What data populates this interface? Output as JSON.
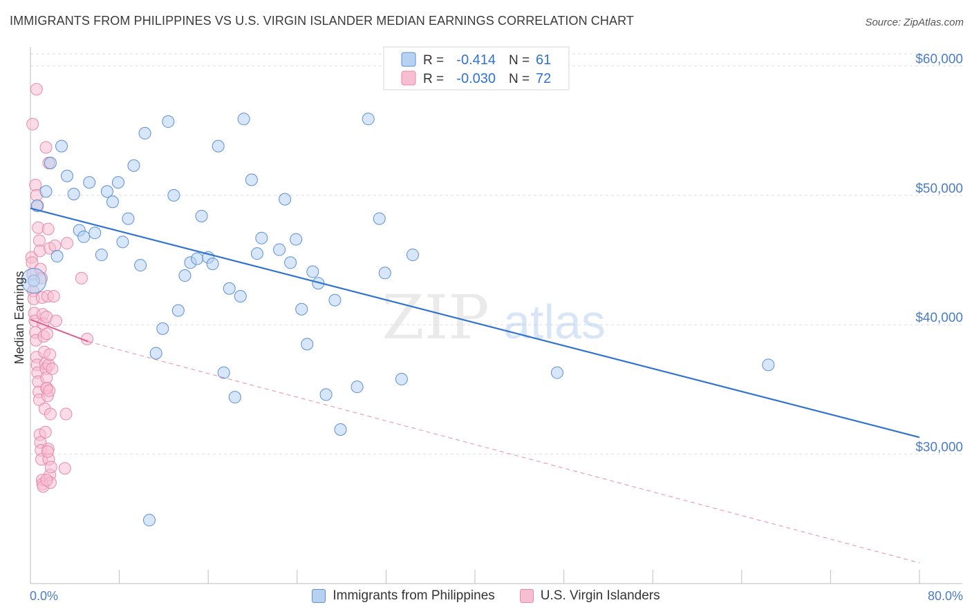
{
  "header": {
    "title": "IMMIGRANTS FROM PHILIPPINES VS U.S. VIRGIN ISLANDER MEDIAN EARNINGS CORRELATION CHART",
    "source": "Source: ZipAtlas.com"
  },
  "watermark": {
    "zip": "ZIP",
    "atlas": "atlas"
  },
  "legend_stats": [
    {
      "r_label": "R =",
      "r_value": "-0.414",
      "n_label": "N =",
      "n_value": "61"
    },
    {
      "r_label": "R =",
      "r_value": "-0.030",
      "n_label": "N =",
      "n_value": "72"
    }
  ],
  "legend_bottom": [
    {
      "label": "Immigrants from Philippines"
    },
    {
      "label": "U.S. Virgin Islanders"
    }
  ],
  "colors": {
    "blue_fill": "#b7d1f2",
    "blue_stroke": "#5b8fd6",
    "blue_line": "#2f72d0",
    "pink_fill": "#f7bdd0",
    "pink_stroke": "#e68aab",
    "pink_line": "#e05a8a",
    "tick_label": "#4a7cc7",
    "grid": "#dddddd"
  },
  "chart_data": {
    "type": "scatter",
    "title": "IMMIGRANTS FROM PHILIPPINES VS U.S. VIRGIN ISLANDER MEDIAN EARNINGS CORRELATION CHART",
    "xlabel": "",
    "ylabel": "Median Earnings",
    "xlim": [
      0,
      80
    ],
    "ylim": [
      20000,
      62000
    ],
    "x_tick_labels": {
      "min": "0.0%",
      "max": "80.0%"
    },
    "y_ticks": [
      {
        "value": 30000,
        "label": "$30,000"
      },
      {
        "value": 40000,
        "label": "$40,000"
      },
      {
        "value": 50000,
        "label": "$50,000"
      },
      {
        "value": 60000,
        "label": "$60,000"
      }
    ],
    "grid": true,
    "legend_position": "top-center",
    "series": [
      {
        "name": "Immigrants from Philippines",
        "color": "blue",
        "points": [
          [
            0.3,
            43400
          ],
          [
            0.6,
            49200
          ],
          [
            1.4,
            50300
          ],
          [
            1.8,
            52500
          ],
          [
            2.4,
            45300
          ],
          [
            2.8,
            53800
          ],
          [
            3.3,
            51500
          ],
          [
            3.9,
            50100
          ],
          [
            4.4,
            47300
          ],
          [
            4.8,
            46800
          ],
          [
            5.3,
            51000
          ],
          [
            5.8,
            47100
          ],
          [
            6.4,
            45400
          ],
          [
            6.9,
            50300
          ],
          [
            7.4,
            49500
          ],
          [
            7.9,
            51000
          ],
          [
            8.3,
            46400
          ],
          [
            8.8,
            48200
          ],
          [
            9.3,
            52300
          ],
          [
            9.9,
            44600
          ],
          [
            10.3,
            54800
          ],
          [
            10.7,
            24900
          ],
          [
            11.3,
            37800
          ],
          [
            11.9,
            39700
          ],
          [
            12.4,
            55700
          ],
          [
            12.9,
            50000
          ],
          [
            13.3,
            41100
          ],
          [
            13.9,
            43800
          ],
          [
            14.4,
            44800
          ],
          [
            15.0,
            45100
          ],
          [
            15.4,
            48400
          ],
          [
            16.0,
            45200
          ],
          [
            16.4,
            44700
          ],
          [
            16.9,
            53800
          ],
          [
            17.4,
            36300
          ],
          [
            17.9,
            42800
          ],
          [
            18.4,
            34400
          ],
          [
            18.9,
            42200
          ],
          [
            19.2,
            55900
          ],
          [
            19.9,
            51200
          ],
          [
            20.4,
            45500
          ],
          [
            20.8,
            46700
          ],
          [
            22.4,
            45800
          ],
          [
            22.9,
            49700
          ],
          [
            23.4,
            44800
          ],
          [
            23.9,
            46600
          ],
          [
            24.4,
            41200
          ],
          [
            24.9,
            38500
          ],
          [
            25.4,
            44100
          ],
          [
            25.9,
            43200
          ],
          [
            26.6,
            34600
          ],
          [
            27.4,
            41900
          ],
          [
            27.9,
            31900
          ],
          [
            29.4,
            35200
          ],
          [
            30.4,
            55900
          ],
          [
            31.4,
            48200
          ],
          [
            31.9,
            44000
          ],
          [
            33.4,
            35800
          ],
          [
            34.4,
            45400
          ],
          [
            47.4,
            36300
          ],
          [
            66.4,
            36900
          ]
        ],
        "trend": {
          "x": [
            0,
            80
          ],
          "y": [
            49000,
            31300
          ],
          "style": "solid"
        }
      },
      {
        "name": "U.S. Virgin Islanders",
        "color": "pink",
        "points": [
          [
            0.1,
            45200
          ],
          [
            0.15,
            44800
          ],
          [
            0.2,
            43900
          ],
          [
            0.25,
            42600
          ],
          [
            0.3,
            42000
          ],
          [
            0.35,
            40900
          ],
          [
            0.4,
            40300
          ],
          [
            0.45,
            39400
          ],
          [
            0.5,
            38800
          ],
          [
            0.55,
            37500
          ],
          [
            0.6,
            36900
          ],
          [
            0.65,
            36300
          ],
          [
            0.7,
            35600
          ],
          [
            0.75,
            34800
          ],
          [
            0.8,
            34200
          ],
          [
            0.85,
            31500
          ],
          [
            0.9,
            30900
          ],
          [
            0.95,
            30300
          ],
          [
            1.0,
            29600
          ],
          [
            1.05,
            28000
          ],
          [
            1.1,
            27700
          ],
          [
            1.15,
            27500
          ],
          [
            0.2,
            55500
          ],
          [
            0.55,
            58200
          ],
          [
            0.45,
            50800
          ],
          [
            0.55,
            50000
          ],
          [
            0.65,
            49200
          ],
          [
            0.7,
            47500
          ],
          [
            0.8,
            46500
          ],
          [
            0.85,
            45700
          ],
          [
            0.9,
            44300
          ],
          [
            1.0,
            43600
          ],
          [
            1.05,
            42100
          ],
          [
            1.1,
            40800
          ],
          [
            1.15,
            40100
          ],
          [
            1.2,
            39100
          ],
          [
            1.25,
            37900
          ],
          [
            1.35,
            37000
          ],
          [
            1.4,
            36600
          ],
          [
            1.45,
            35900
          ],
          [
            1.5,
            35100
          ],
          [
            1.55,
            34500
          ],
          [
            1.3,
            33500
          ],
          [
            1.35,
            31700
          ],
          [
            1.6,
            30400
          ],
          [
            1.65,
            29600
          ],
          [
            1.75,
            28400
          ],
          [
            1.8,
            27800
          ],
          [
            1.6,
            47400
          ],
          [
            1.55,
            42200
          ],
          [
            1.5,
            39300
          ],
          [
            1.45,
            35100
          ],
          [
            1.55,
            30200
          ],
          [
            1.45,
            28000
          ],
          [
            1.45,
            40600
          ],
          [
            1.65,
            36900
          ],
          [
            1.7,
            34900
          ],
          [
            1.75,
            37700
          ],
          [
            1.8,
            33100
          ],
          [
            1.85,
            29000
          ],
          [
            1.4,
            53700
          ],
          [
            1.65,
            52500
          ],
          [
            1.75,
            45900
          ],
          [
            1.95,
            36600
          ],
          [
            2.1,
            42200
          ],
          [
            2.2,
            46100
          ],
          [
            3.2,
            33100
          ],
          [
            3.3,
            46300
          ],
          [
            3.1,
            28900
          ],
          [
            4.6,
            43600
          ],
          [
            5.1,
            38900
          ],
          [
            2.3,
            40300
          ]
        ],
        "trend": {
          "solid": {
            "x": [
              0,
              5.2
            ],
            "y": [
              40400,
              38700
            ]
          },
          "dashed": {
            "x": [
              5.2,
              80
            ],
            "y": [
              38700,
              21600
            ]
          }
        }
      }
    ]
  }
}
